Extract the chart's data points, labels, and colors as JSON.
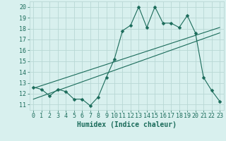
{
  "x": [
    0,
    1,
    2,
    3,
    4,
    5,
    6,
    7,
    8,
    9,
    10,
    11,
    12,
    13,
    14,
    15,
    16,
    17,
    18,
    19,
    20,
    21,
    22,
    23
  ],
  "y": [
    12.6,
    12.4,
    11.8,
    12.4,
    12.2,
    11.5,
    11.5,
    10.9,
    11.7,
    13.5,
    15.2,
    17.8,
    18.3,
    20.0,
    18.1,
    20.0,
    18.5,
    18.5,
    18.1,
    19.2,
    17.6,
    13.5,
    12.3,
    11.3
  ],
  "line1_x": [
    0,
    23
  ],
  "line1_y": [
    12.5,
    18.1
  ],
  "line2_x": [
    0,
    23
  ],
  "line2_y": [
    11.5,
    17.6
  ],
  "curve_color": "#1a6b5a",
  "line_color": "#1a6b5a",
  "bg_color": "#d8f0ee",
  "grid_color": "#b8d8d4",
  "xlabel": "Humidex (Indice chaleur)",
  "xlim": [
    -0.5,
    23.5
  ],
  "ylim": [
    10.5,
    20.5
  ],
  "yticks": [
    11,
    12,
    13,
    14,
    15,
    16,
    17,
    18,
    19,
    20
  ],
  "xticks": [
    0,
    1,
    2,
    3,
    4,
    5,
    6,
    7,
    8,
    9,
    10,
    11,
    12,
    13,
    14,
    15,
    16,
    17,
    18,
    19,
    20,
    21,
    22,
    23
  ],
  "tick_fontsize": 6.0,
  "xlabel_fontsize": 7.0,
  "marker_size": 2.5,
  "linewidth": 0.8
}
